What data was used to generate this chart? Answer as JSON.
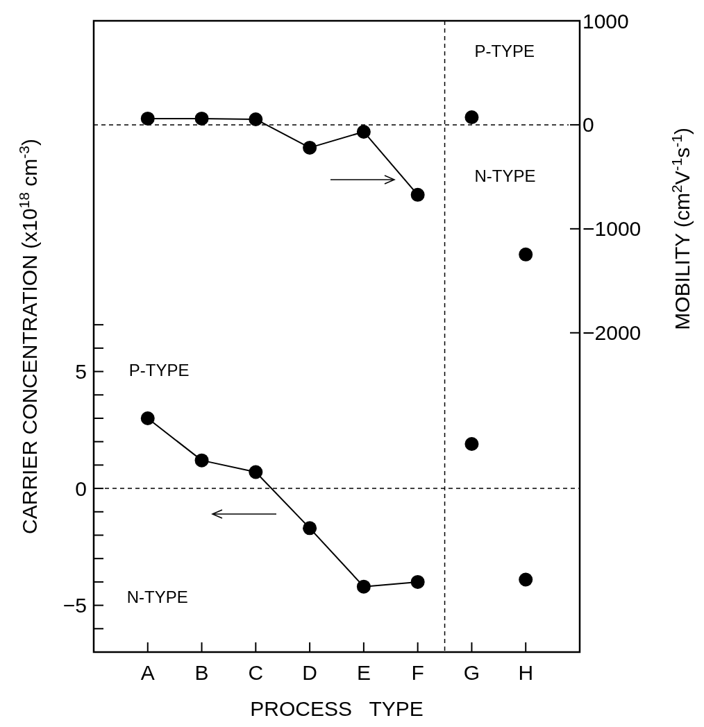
{
  "chart_data": {
    "type": "line",
    "xlabel": "PROCESS   TYPE",
    "ylabel": "CARRIER CONCENTRATION (x10$^{18}$ cm$^{-3}$)",
    "y2label": "MOBILITY (cm$^{2}$V$^{-1}$s$^{-1}$)",
    "categories": [
      "A",
      "B",
      "C",
      "D",
      "E",
      "F",
      "G",
      "H"
    ],
    "series": [
      {
        "type": "line",
        "color": "#000000",
        "values": [
          3.0,
          1.2,
          0.7,
          -1.7,
          -4.2,
          -4.0,
          null,
          null
        ]
      },
      {
        "type": "scatter",
        "color": "#000000",
        "x": [
          "G",
          "H"
        ],
        "values": [
          1.9,
          -3.9
        ]
      },
      {
        "type": "line",
        "axis": "y2",
        "color": "#000000",
        "values": [
          60,
          60,
          53,
          -220,
          -67,
          -673,
          null,
          null
        ]
      },
      {
        "type": "scatter",
        "axis": "y2",
        "color": "#000000",
        "x": [
          "G",
          "H"
        ],
        "values": [
          73,
          -1247
        ]
      }
    ],
    "ylim": [
      -7,
      20
    ],
    "yticks": [
      {
        "value": -6,
        "label": null
      },
      -5,
      {
        "value": -4,
        "label": null
      },
      {
        "value": -3,
        "label": null
      },
      {
        "value": -2,
        "label": null
      },
      {
        "value": -1,
        "label": null
      },
      0,
      {
        "value": 1,
        "label": null
      },
      {
        "value": 2,
        "label": null
      },
      {
        "value": 3,
        "label": null
      },
      {
        "value": 4,
        "label": null
      },
      5,
      {
        "value": 6,
        "label": null
      },
      {
        "value": 7,
        "label": null
      }
    ],
    "y2lim": [
      -5070,
      1000
    ],
    "y2ticks": [
      -2000,
      -1000,
      0,
      1000
    ],
    "marker": "circle",
    "line_style": "solid",
    "annotations": [
      "P-TYPE",
      "N-TYPE",
      "P-TYPE",
      "N-TYPE"
    ]
  }
}
